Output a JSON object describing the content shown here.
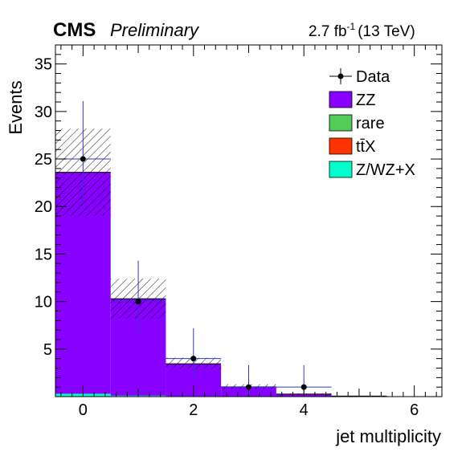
{
  "header": {
    "experiment": "CMS",
    "status": "Preliminary",
    "lumi_value": "2.7 fb",
    "lumi_exp": "-1",
    "energy": "(13 TeV)"
  },
  "chart_data": {
    "type": "bar",
    "title": "",
    "xlabel": "jet multiplicity",
    "ylabel": "Events",
    "xlim": [
      -0.5,
      6.5
    ],
    "ylim": [
      0,
      37
    ],
    "x_ticks": [
      "0",
      "2",
      "4",
      "6"
    ],
    "y_ticks": [
      "5",
      "10",
      "15",
      "20",
      "25",
      "30",
      "35"
    ],
    "categories": [
      "0",
      "1",
      "2",
      "3",
      "4",
      "5",
      "6"
    ],
    "stack": [
      {
        "name": "Z/WZ+X",
        "color": "#00ffcc",
        "values": [
          0.3,
          0.1,
          0.05,
          0.02,
          0.01,
          0,
          0
        ]
      },
      {
        "name": "ttX",
        "color": "#ff3300",
        "values": [
          0,
          0,
          0,
          0,
          0,
          0,
          0
        ]
      },
      {
        "name": "rare",
        "color": "#55cc55",
        "values": [
          0,
          0,
          0,
          0,
          0,
          0,
          0
        ]
      },
      {
        "name": "ZZ",
        "color": "#8800ff",
        "values": [
          23.3,
          10.2,
          3.4,
          1.0,
          0.25,
          0.05,
          0
        ]
      }
    ],
    "uncertainty_band": {
      "low": [
        19.0,
        8.2,
        2.9,
        0.8,
        0.2,
        0,
        0
      ],
      "high": [
        28.2,
        12.4,
        4.1,
        1.3,
        0.35,
        0.07,
        0
      ]
    },
    "data": {
      "name": "Data",
      "x": [
        0,
        1,
        2,
        3,
        4
      ],
      "y": [
        25,
        10,
        4,
        1,
        1
      ],
      "err_low": [
        5,
        3.2,
        2,
        0.8,
        0.8
      ],
      "err_high": [
        6.1,
        4.3,
        3.2,
        2.3,
        2.3
      ]
    },
    "legend": {
      "position": "top-right",
      "entries": [
        {
          "label": "Data",
          "kind": "marker"
        },
        {
          "label": "ZZ",
          "kind": "box",
          "color": "#8800ff"
        },
        {
          "label": "rare",
          "kind": "box",
          "color": "#55cc55"
        },
        {
          "label": "tt̄X",
          "kind": "box",
          "color": "#ff3300"
        },
        {
          "label": "Z/WZ+X",
          "kind": "box",
          "color": "#00ffcc"
        }
      ]
    }
  }
}
